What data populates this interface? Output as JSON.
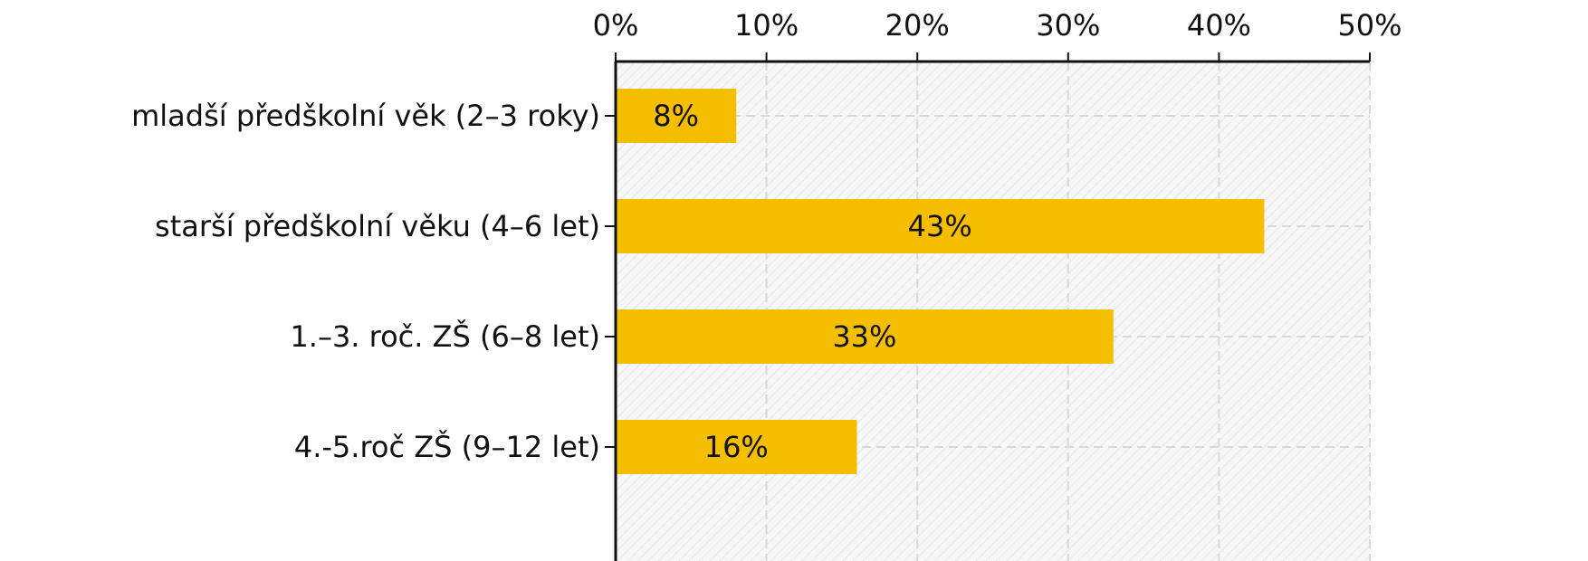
{
  "chart_data": {
    "type": "bar",
    "orientation": "horizontal",
    "categories": [
      "mladší předškolní věk (2–3 roky)",
      "starší předškolní věku (4–6 let)",
      "1.–3. roč. ZŠ (6–8 let)",
      "4.-5.roč ZŠ (9–12 let)"
    ],
    "values": [
      8,
      43,
      33,
      16
    ],
    "value_labels": [
      "8%",
      "43%",
      "33%",
      "16%"
    ],
    "color": "#f5be00",
    "xlim": [
      0,
      50
    ],
    "xticks": [
      {
        "value": 0,
        "label": "0%"
      },
      {
        "value": 10,
        "label": "10%"
      },
      {
        "value": 20,
        "label": "20%"
      },
      {
        "value": 30,
        "label": "30%"
      },
      {
        "value": 40,
        "label": "40%"
      },
      {
        "value": 50,
        "label": "50%"
      }
    ],
    "grid": true
  }
}
